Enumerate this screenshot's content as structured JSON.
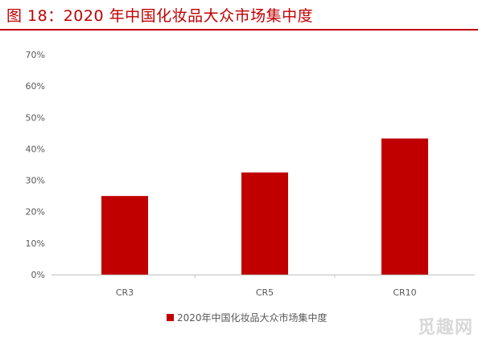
{
  "header": {
    "title": "图 18：2020 年中国化妆品大众市场集中度"
  },
  "colors": {
    "title": "#c00000",
    "bar": "#c00000",
    "axis": "#bfbfbf",
    "tick_text": "#595959"
  },
  "chart_data": {
    "type": "bar",
    "title": "",
    "xlabel": "",
    "ylabel": "",
    "categories": [
      "CR3",
      "CR5",
      "CR10"
    ],
    "series": [
      {
        "name": "2020年中国化妆品大众市场集中度",
        "values": [
          25,
          32.5,
          43.3
        ]
      }
    ],
    "ylim": [
      0,
      70
    ],
    "yticks": [
      "0%",
      "10%",
      "20%",
      "30%",
      "40%",
      "50%",
      "60%",
      "70%"
    ],
    "grid": false,
    "legend_position": "bottom"
  },
  "watermark": {
    "text": "觅趣网"
  }
}
